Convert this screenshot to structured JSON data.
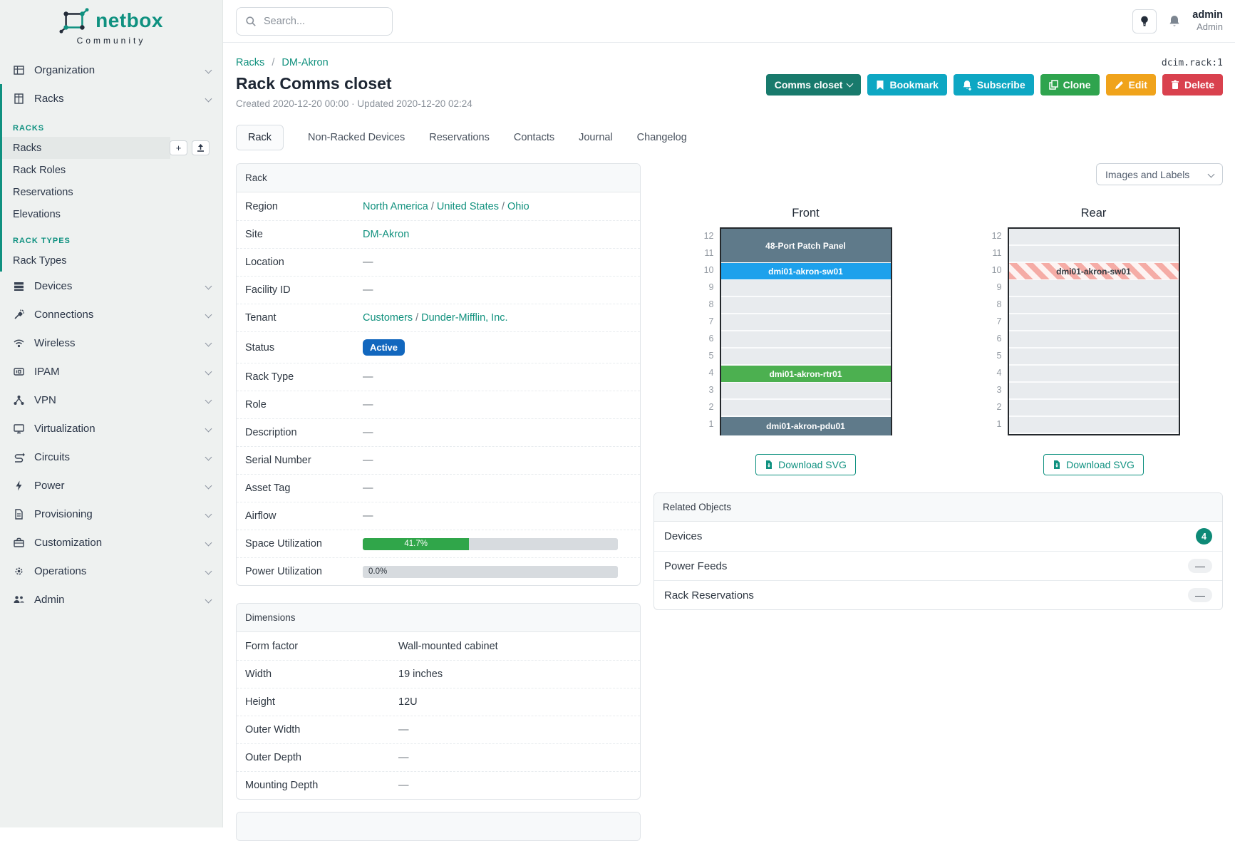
{
  "colors": {
    "accent_teal": "#0f9180",
    "link_teal": "#11917e",
    "status_active_badge": "#1267be",
    "button_status": "#187a6c",
    "button_info": "#0ea7c3",
    "button_success": "#2fa44e",
    "button_warning": "#f0a31b",
    "button_danger": "#d9414e",
    "bar_green": "#30a64a",
    "unit_slate": "#5f7a8a",
    "unit_blue": "#1da1ec",
    "unit_green": "#4cb050",
    "unit_rear_stripe": "#f5aca6",
    "count_badge_teal": "#0e8a77"
  },
  "sidebar": {
    "logo": {
      "brand": "netbox",
      "community": "Community"
    },
    "organization_label": "Organization",
    "racks_label": "Racks",
    "sections": [
      {
        "title": "RACKS",
        "items": [
          {
            "label": "Racks"
          },
          {
            "label": "Rack Roles"
          },
          {
            "label": "Reservations"
          },
          {
            "label": "Elevations"
          }
        ]
      },
      {
        "title": "RACK TYPES",
        "items": [
          {
            "label": "Rack Types"
          }
        ]
      }
    ],
    "items": [
      {
        "label": "Devices"
      },
      {
        "label": "Connections"
      },
      {
        "label": "Wireless"
      },
      {
        "label": "IPAM"
      },
      {
        "label": "VPN"
      },
      {
        "label": "Virtualization"
      },
      {
        "label": "Circuits"
      },
      {
        "label": "Power"
      },
      {
        "label": "Provisioning"
      },
      {
        "label": "Customization"
      },
      {
        "label": "Operations"
      },
      {
        "label": "Admin"
      }
    ]
  },
  "header": {
    "search_placeholder": "Search...",
    "user_name": "admin",
    "user_role": "Admin"
  },
  "page": {
    "breadcrumb": [
      "Racks",
      "DM-Akron"
    ],
    "breadcrumb_separator": "/",
    "object_ref": "dcim.rack:1",
    "title": "Rack Comms closet",
    "meta": "Created 2020-12-20 00:00 · Updated 2020-12-20 02:24"
  },
  "actions": {
    "status_button": "Comms closet",
    "bookmark": "Bookmark",
    "subscribe": "Subscribe",
    "clone": "Clone",
    "edit": "Edit",
    "delete": "Delete"
  },
  "tabs": [
    {
      "label": "Rack",
      "active": true
    },
    {
      "label": "Non-Racked Devices",
      "active": false
    },
    {
      "label": "Reservations",
      "active": false
    },
    {
      "label": "Contacts",
      "active": false
    },
    {
      "label": "Journal",
      "active": false
    },
    {
      "label": "Changelog",
      "active": false
    }
  ],
  "rack_panel": {
    "title": "Rack",
    "labels": {
      "region": "Region",
      "site": "Site",
      "location": "Location",
      "facility_id": "Facility ID",
      "tenant": "Tenant",
      "status": "Status",
      "rack_type": "Rack Type",
      "role": "Role",
      "description": "Description",
      "serial": "Serial Number",
      "asset_tag": "Asset Tag",
      "airflow": "Airflow",
      "space": "Space Utilization",
      "power": "Power Utilization"
    },
    "region_links": [
      "North America",
      "United States",
      "Ohio"
    ],
    "site_link": "DM-Akron",
    "tenant_links": [
      "Customers",
      "Dunder-Mifflin, Inc."
    ],
    "status_badge": "Active",
    "empty": "—",
    "link_separator": "/"
  },
  "utilization": {
    "space_value": "41.7%",
    "space_pct": 41.7,
    "power_value": "0.0%",
    "power_pct": 0.0
  },
  "dimensions_panel": {
    "title": "Dimensions",
    "rows": [
      {
        "label": "Form factor",
        "value": "Wall-mounted cabinet"
      },
      {
        "label": "Width",
        "value": "19 inches"
      },
      {
        "label": "Height",
        "value": "12U"
      },
      {
        "label": "Outer Width",
        "value": "—"
      },
      {
        "label": "Outer Depth",
        "value": "—"
      },
      {
        "label": "Mounting Depth",
        "value": "—"
      }
    ]
  },
  "elevations": {
    "view_select": "Images and Labels",
    "download_label": "Download SVG",
    "units": [
      "12",
      "11",
      "10",
      "9",
      "8",
      "7",
      "6",
      "5",
      "4",
      "3",
      "2",
      "1"
    ],
    "front": {
      "title": "Front",
      "devices": [
        {
          "name": "48-Port Patch Panel",
          "top_unit": 12,
          "span": 2,
          "style": "slate"
        },
        {
          "name": "dmi01-akron-sw01",
          "top_unit": 10,
          "span": 1,
          "style": "blue"
        },
        {
          "name": "dmi01-akron-rtr01",
          "top_unit": 4,
          "span": 1,
          "style": "green"
        },
        {
          "name": "dmi01-akron-pdu01",
          "top_unit": 1,
          "span": 1,
          "style": "slate"
        }
      ]
    },
    "rear": {
      "title": "Rear",
      "devices": [
        {
          "name": "dmi01-akron-sw01",
          "top_unit": 10,
          "span": 1,
          "style": "striped"
        }
      ]
    }
  },
  "related_panel": {
    "title": "Related Objects",
    "rows": [
      {
        "label": "Devices",
        "count": "4"
      },
      {
        "label": "Power Feeds",
        "count": "—"
      },
      {
        "label": "Rack Reservations",
        "count": "—"
      }
    ]
  }
}
